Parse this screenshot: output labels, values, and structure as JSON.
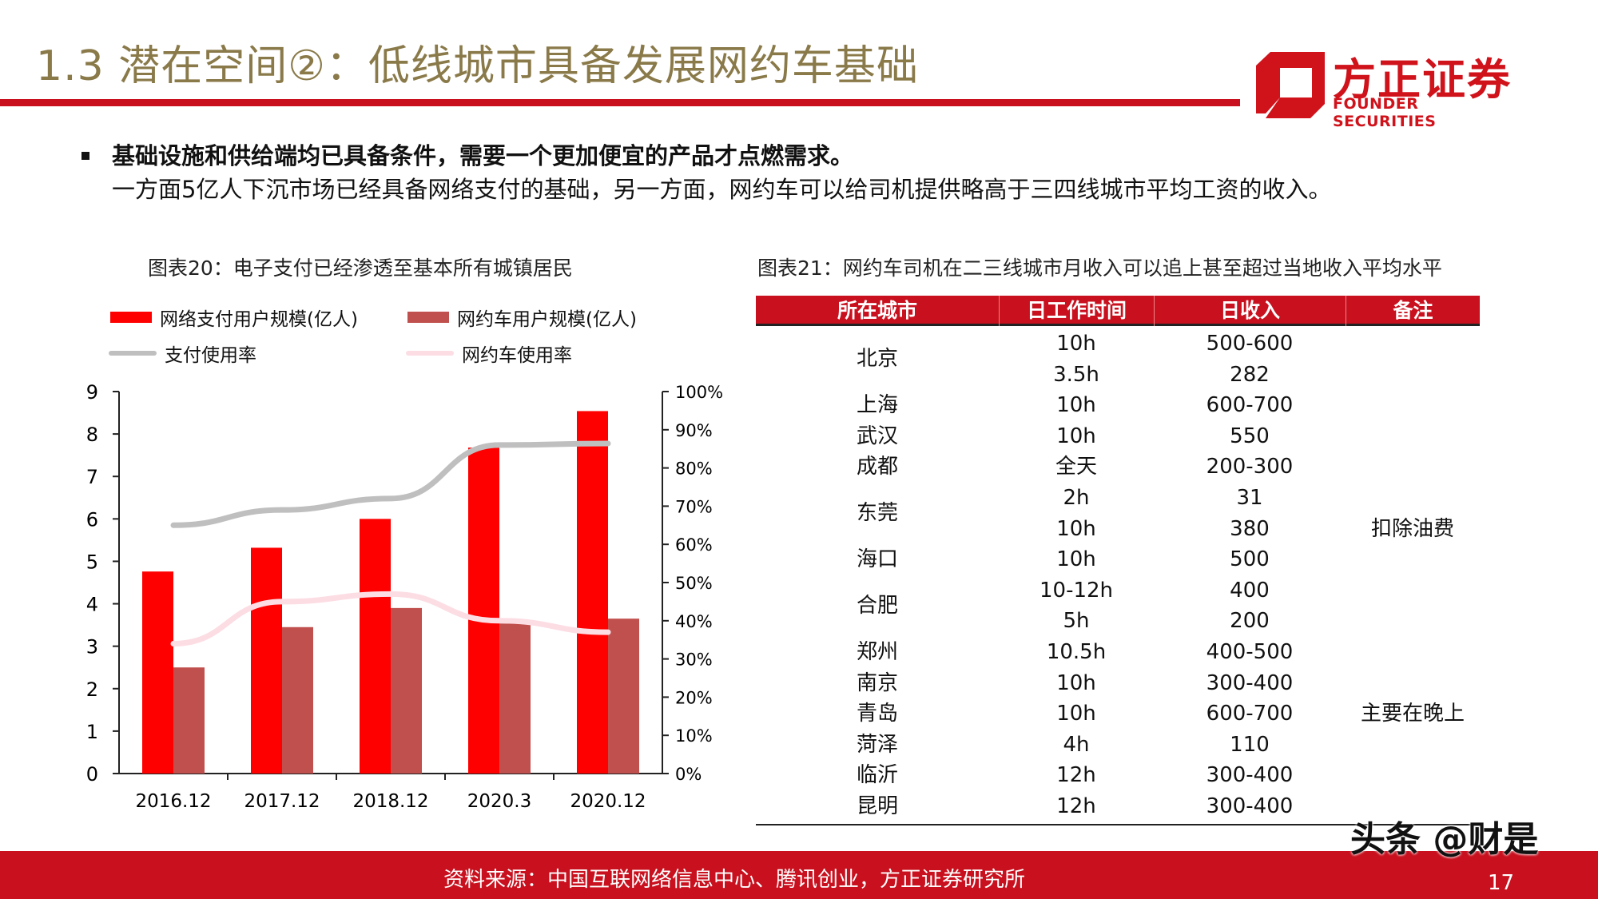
{
  "header": {
    "title": "1.3 潜在空间②：低线城市具备发展网约车基础",
    "logo_zh": "方正证券",
    "logo_en": "FOUNDER SECURITIES",
    "brand_color": "#c8101e"
  },
  "summary": {
    "bold": "基础设施和供给端均已具备条件，需要一个更加便宜的产品才点燃需求。",
    "rest": "一方面5亿人下沉市场已经具备网络支付的基础，另一方面，网约车可以给司机提供略高于三四线城市平均工资的收入。"
  },
  "chart_data": {
    "type": "bar",
    "title": "图表20：电子支付已经渗透至基本所有城镇居民",
    "categories": [
      "2016.12",
      "2017.12",
      "2018.12",
      "2020.3",
      "2020.12"
    ],
    "series": [
      {
        "name": "网络支付用户规模(亿人)",
        "type": "bar",
        "axis": "left",
        "color": "#ff0000",
        "values": [
          4.76,
          5.32,
          6.0,
          7.68,
          8.54
        ]
      },
      {
        "name": "网约车用户规模(亿人)",
        "type": "bar",
        "axis": "left",
        "color": "#c0504d",
        "values": [
          2.5,
          3.45,
          3.9,
          3.62,
          3.65
        ]
      },
      {
        "name": "支付使用率",
        "type": "line",
        "axis": "right",
        "color": "#bfbfbf",
        "values": [
          65,
          69,
          72,
          86,
          86.4
        ]
      },
      {
        "name": "网约车使用率",
        "type": "line",
        "axis": "right",
        "color": "#fcdde4",
        "values": [
          34,
          45,
          47,
          40,
          37
        ]
      }
    ],
    "ylim": [
      0,
      9
    ],
    "yticks": [
      "0",
      "1",
      "2",
      "3",
      "4",
      "5",
      "6",
      "7",
      "8",
      "9"
    ],
    "y2lim": [
      0,
      100
    ],
    "y2ticks": [
      "0%",
      "10%",
      "20%",
      "30%",
      "40%",
      "50%",
      "60%",
      "70%",
      "80%",
      "90%",
      "100%"
    ],
    "legend": "top",
    "grid": false
  },
  "table": {
    "title": "图表21：网约车司机在二三线城市月收入可以追上甚至超过当地收入平均水平",
    "headers": [
      "所在城市",
      "日工作时间",
      "日收入",
      "备注"
    ],
    "groups": [
      {
        "city": "北京",
        "entries": [
          {
            "hours": "10h",
            "income": "500-600",
            "note": ""
          },
          {
            "hours": "3.5h",
            "income": "282",
            "note": ""
          }
        ]
      },
      {
        "city": "上海",
        "entries": [
          {
            "hours": "10h",
            "income": "600-700",
            "note": ""
          }
        ]
      },
      {
        "city": "武汉",
        "entries": [
          {
            "hours": "10h",
            "income": "550",
            "note": ""
          }
        ]
      },
      {
        "city": "成都",
        "entries": [
          {
            "hours": "全天",
            "income": "200-300",
            "note": ""
          }
        ]
      },
      {
        "city": "东莞",
        "entries": [
          {
            "hours": "2h",
            "income": "31",
            "note": ""
          },
          {
            "hours": "10h",
            "income": "380",
            "note": "扣除油费"
          }
        ]
      },
      {
        "city": "海口",
        "entries": [
          {
            "hours": "10h",
            "income": "500",
            "note": ""
          }
        ]
      },
      {
        "city": "合肥",
        "entries": [
          {
            "hours": "10-12h",
            "income": "400",
            "note": ""
          },
          {
            "hours": "5h",
            "income": "200",
            "note": ""
          }
        ]
      },
      {
        "city": "郑州",
        "entries": [
          {
            "hours": "10.5h",
            "income": "400-500",
            "note": ""
          }
        ]
      },
      {
        "city": "南京",
        "entries": [
          {
            "hours": "10h",
            "income": "300-400",
            "note": ""
          }
        ]
      },
      {
        "city": "青岛",
        "entries": [
          {
            "hours": "10h",
            "income": "600-700",
            "note": "主要在晚上"
          }
        ]
      },
      {
        "city": "菏泽",
        "entries": [
          {
            "hours": "4h",
            "income": "110",
            "note": ""
          }
        ]
      },
      {
        "city": "临沂",
        "entries": [
          {
            "hours": "12h",
            "income": "300-400",
            "note": ""
          }
        ]
      },
      {
        "city": "昆明",
        "entries": [
          {
            "hours": "12h",
            "income": "300-400",
            "note": ""
          }
        ]
      }
    ]
  },
  "footer": {
    "source": "资料来源：中国互联网络信息中心、腾讯创业，方正证券研究所",
    "page": "17",
    "watermark": "头条 @财是"
  }
}
